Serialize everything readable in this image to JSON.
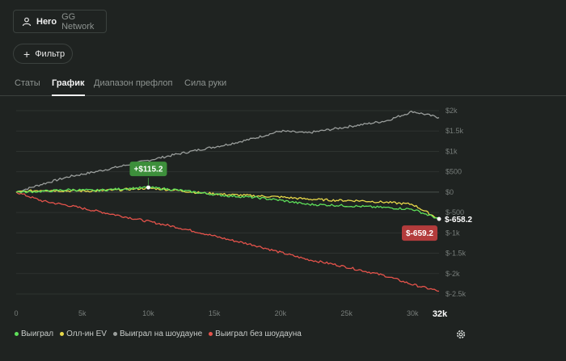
{
  "hero": {
    "name": "Hero",
    "network": "GG Network"
  },
  "filter": {
    "label": "Фильтр"
  },
  "tabs": [
    {
      "label": "Статы",
      "active": false
    },
    {
      "label": "График",
      "active": true
    },
    {
      "label": "Диапазон префлоп",
      "active": false
    },
    {
      "label": "Сила руки",
      "active": false
    }
  ],
  "chart_data": {
    "type": "line",
    "xlim": [
      0,
      32000
    ],
    "ylim": [
      -2500,
      2000
    ],
    "x_ticks": [
      "0",
      "5k",
      "10k",
      "15k",
      "20k",
      "25k",
      "30k"
    ],
    "x_ticks_values": [
      0,
      5000,
      10000,
      15000,
      20000,
      25000,
      30000
    ],
    "x_end_label": "32k",
    "y_ticks": [
      "$2k",
      "$1.5k",
      "$1k",
      "$500",
      "$0",
      "$-500",
      "$-1k",
      "$-1.5k",
      "$-2k",
      "$-2.5k"
    ],
    "y_ticks_values": [
      2000,
      1500,
      1000,
      500,
      0,
      -500,
      -1000,
      -1500,
      -2000,
      -2500
    ],
    "series": [
      {
        "name": "Выиграл",
        "color": "#5ee05a",
        "x": [
          0,
          2000,
          4000,
          6000,
          8000,
          10000,
          12000,
          14000,
          16000,
          18000,
          20000,
          22000,
          24000,
          26000,
          28000,
          30000,
          32000
        ],
        "values": [
          0,
          20,
          60,
          40,
          80,
          115,
          60,
          -20,
          -90,
          -130,
          -200,
          -300,
          -320,
          -350,
          -380,
          -420,
          -658.2
        ]
      },
      {
        "name": "Олл-ин EV",
        "color": "#e8d94a",
        "x": [
          0,
          2000,
          4000,
          6000,
          8000,
          10000,
          12000,
          14000,
          16000,
          18000,
          20000,
          22000,
          24000,
          26000,
          28000,
          30000,
          32000
        ],
        "values": [
          0,
          50,
          30,
          30,
          60,
          100,
          50,
          -20,
          -60,
          -90,
          -120,
          -170,
          -200,
          -210,
          -250,
          -300,
          -659.2
        ]
      },
      {
        "name": "Выиграл на шоудауне",
        "color": "#9a9e9c",
        "x": [
          0,
          2000,
          4000,
          6000,
          8000,
          10000,
          12000,
          14000,
          16000,
          18000,
          20000,
          22000,
          24000,
          26000,
          28000,
          30000,
          32000
        ],
        "values": [
          0,
          200,
          380,
          500,
          640,
          780,
          920,
          1050,
          1170,
          1320,
          1500,
          1450,
          1550,
          1650,
          1750,
          1980,
          1830
        ]
      },
      {
        "name": "Выиграл без шоудауна",
        "color": "#e5534b",
        "x": [
          0,
          2000,
          4000,
          6000,
          8000,
          10000,
          12000,
          14000,
          16000,
          18000,
          20000,
          22000,
          24000,
          26000,
          28000,
          30000,
          32000
        ],
        "values": [
          0,
          -220,
          -330,
          -460,
          -590,
          -720,
          -850,
          -1000,
          -1160,
          -1300,
          -1480,
          -1650,
          -1770,
          -1910,
          -2060,
          -2270,
          -2430
        ]
      }
    ],
    "annotations": {
      "peak": {
        "label": "+$115.2",
        "x": 10000,
        "value": 115.2,
        "color": "#3d8f3b"
      },
      "end_won": {
        "label": "$-658.2",
        "value": -658.2
      },
      "end_ev": {
        "label": "$-659.2",
        "value": -659.2,
        "color": "#b33c3c"
      }
    },
    "grid": true
  },
  "settings_icon": "gear-icon"
}
